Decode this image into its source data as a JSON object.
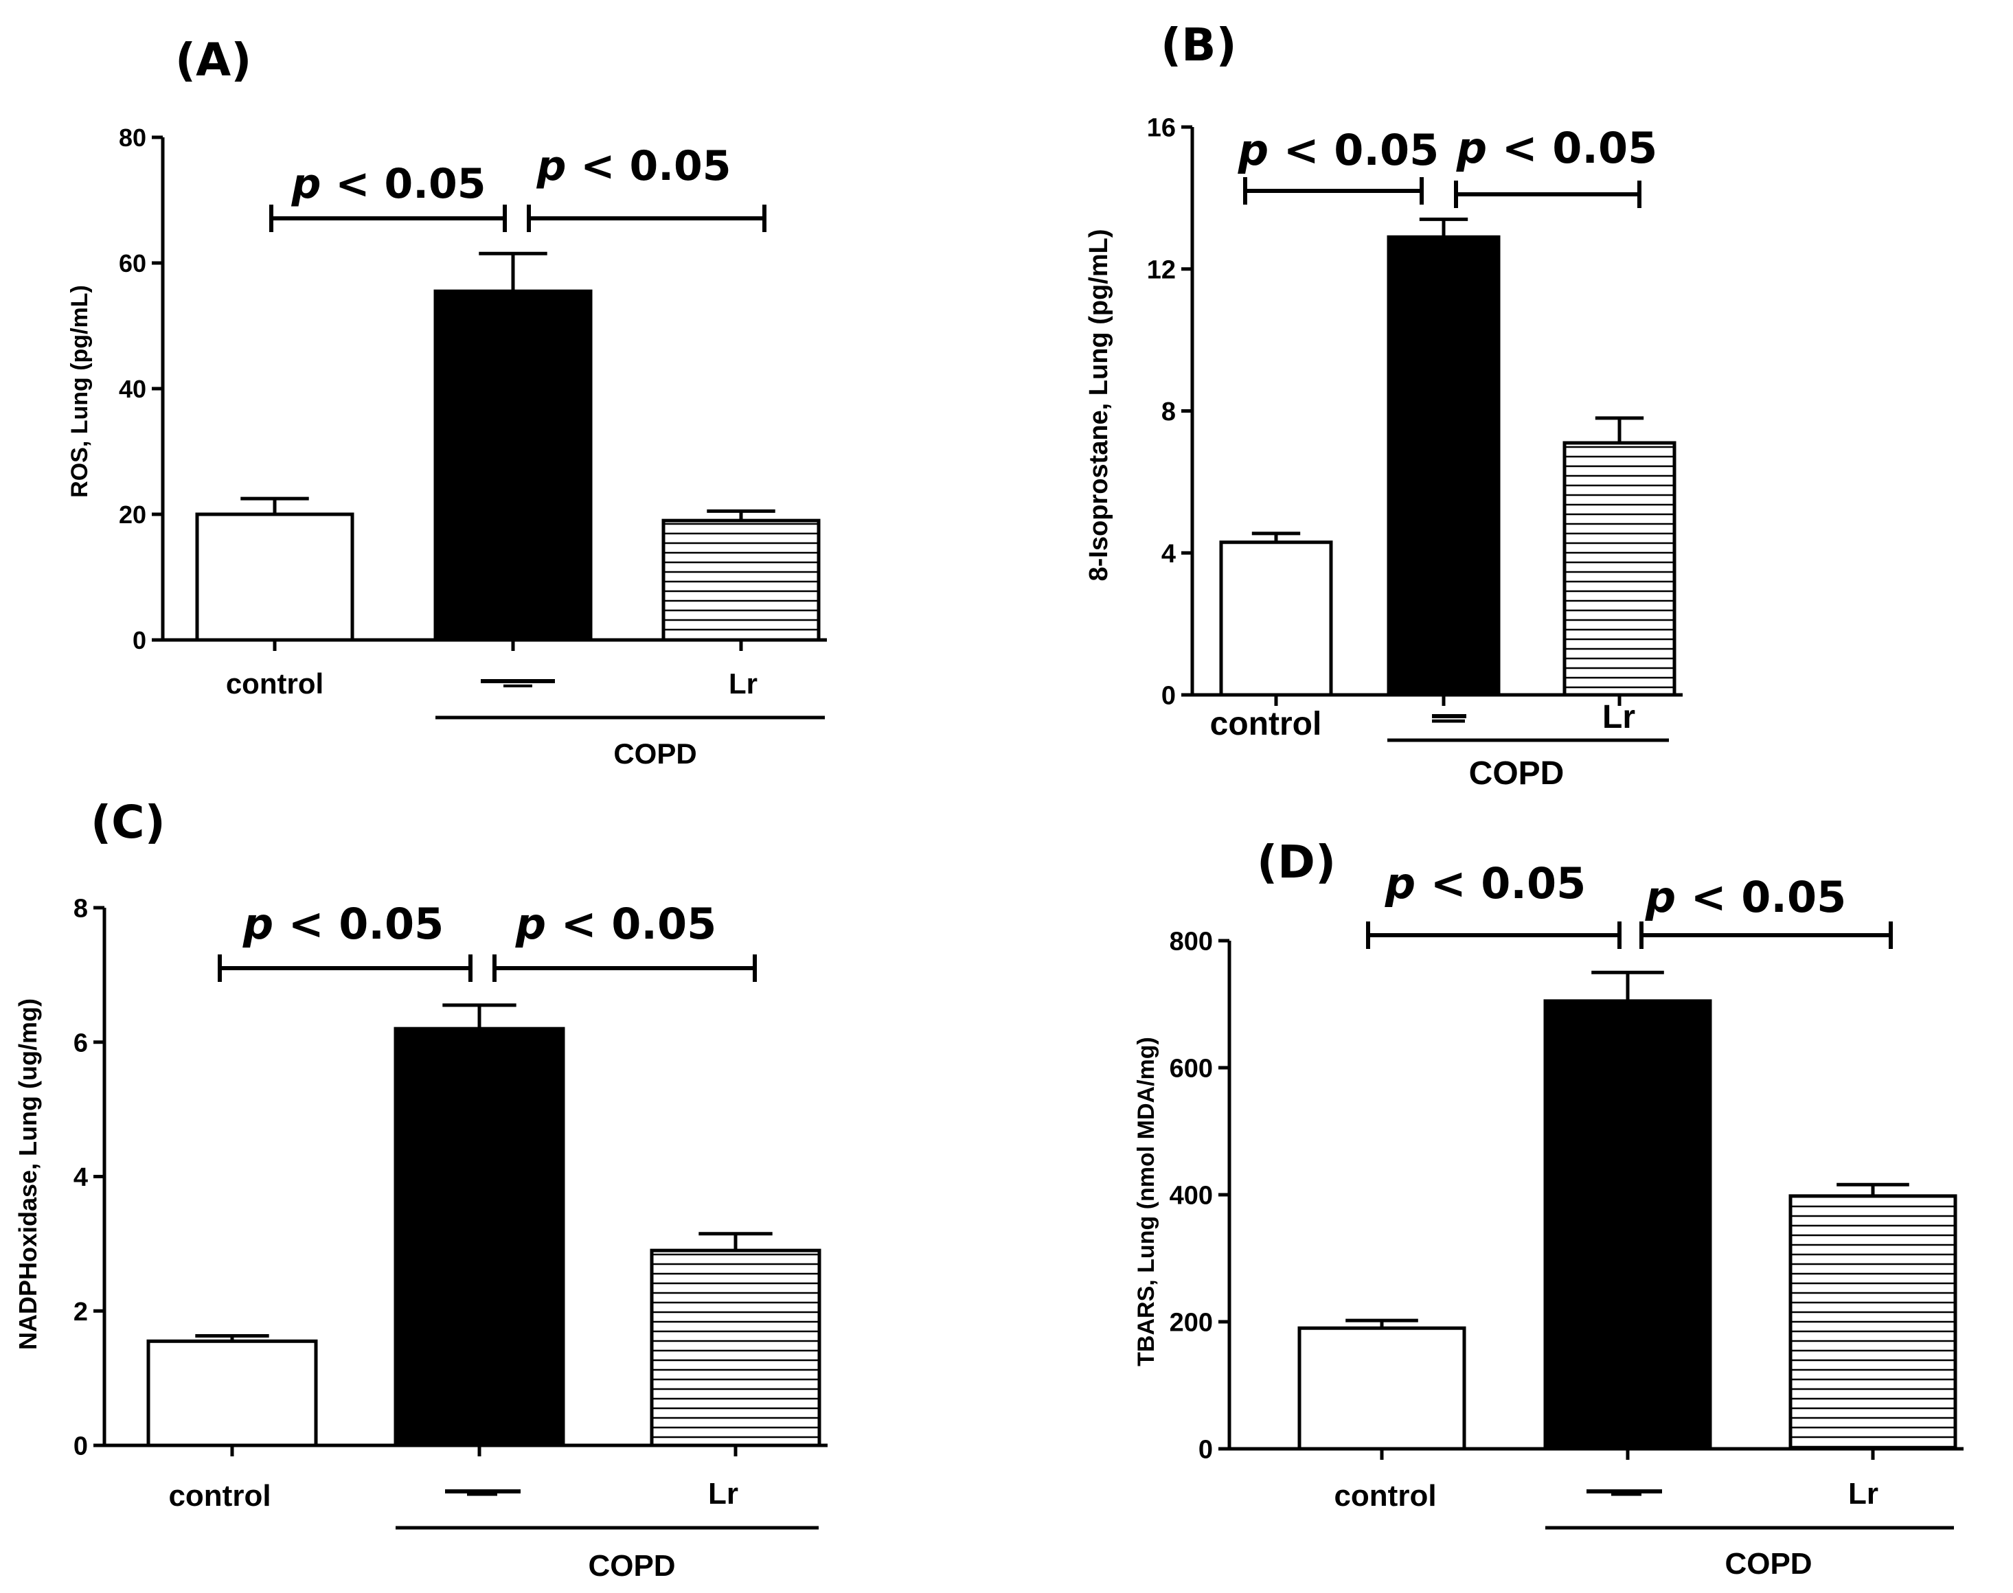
{
  "chart_data": [
    {
      "type": "bar",
      "panel_label": "(A)",
      "categories": [
        "control",
        "—",
        "Lr"
      ],
      "group_label": "COPD",
      "values": [
        20,
        55.5,
        19
      ],
      "errors": [
        2.5,
        6,
        1.5
      ],
      "ylabel": "ROS, Lung (pg/mL)",
      "ylim": [
        0,
        80
      ],
      "yticks": [
        "0",
        "20",
        "40",
        "60",
        "80"
      ],
      "significance": [
        {
          "italic": "p",
          "text": " < 0.05",
          "from": 0,
          "to": 1
        },
        {
          "italic": "p",
          "text": " < 0.05",
          "from": 1,
          "to": 2
        }
      ],
      "fills": [
        "white",
        "black",
        "hatched"
      ]
    },
    {
      "type": "bar",
      "panel_label": "(B)",
      "categories": [
        "control",
        "—",
        "Lr"
      ],
      "group_label": "COPD",
      "values": [
        4.3,
        12.9,
        7.1
      ],
      "errors": [
        0.25,
        0.5,
        0.7
      ],
      "ylabel": "8-Isoprostane, Lung (pg/mL)",
      "ylim": [
        0,
        16
      ],
      "yticks": [
        "0",
        "4",
        "8",
        "12",
        "16"
      ],
      "significance": [
        {
          "italic": "p",
          "text": " < 0.05",
          "from": 0,
          "to": 1
        },
        {
          "italic": "p",
          "text": " < 0.05",
          "from": 1,
          "to": 2
        }
      ],
      "fills": [
        "white",
        "black",
        "hatched"
      ]
    },
    {
      "type": "bar",
      "panel_label": "(C)",
      "categories": [
        "control",
        "—",
        "Lr"
      ],
      "group_label": "COPD",
      "values": [
        1.55,
        6.2,
        2.9
      ],
      "errors": [
        0.08,
        0.35,
        0.25
      ],
      "ylabel": "NADPHoxidase, Lung (ug/mg)",
      "ylim": [
        0,
        8
      ],
      "yticks": [
        "0",
        "2",
        "4",
        "6",
        "8"
      ],
      "significance": [
        {
          "italic": "p",
          "text": " < 0.05",
          "from": 0,
          "to": 1
        },
        {
          "italic": "p",
          "text": " < 0.05",
          "from": 1,
          "to": 2
        }
      ],
      "fills": [
        "white",
        "black",
        "hatched"
      ]
    },
    {
      "type": "bar",
      "panel_label": "(D)",
      "categories": [
        "control",
        "—",
        "Lr"
      ],
      "group_label": "COPD",
      "values": [
        190,
        705,
        398
      ],
      "errors": [
        12,
        45,
        18
      ],
      "ylabel": "TBARS, Lung (nmol MDA/mg)",
      "ylim": [
        0,
        800
      ],
      "yticks": [
        "0",
        "200",
        "400",
        "600",
        "800"
      ],
      "significance": [
        {
          "italic": "p",
          "text": " < 0.05",
          "from": 0,
          "to": 1
        },
        {
          "italic": "p",
          "text": " < 0.05",
          "from": 1,
          "to": 2
        }
      ],
      "fills": [
        "white",
        "black",
        "hatched"
      ]
    }
  ]
}
